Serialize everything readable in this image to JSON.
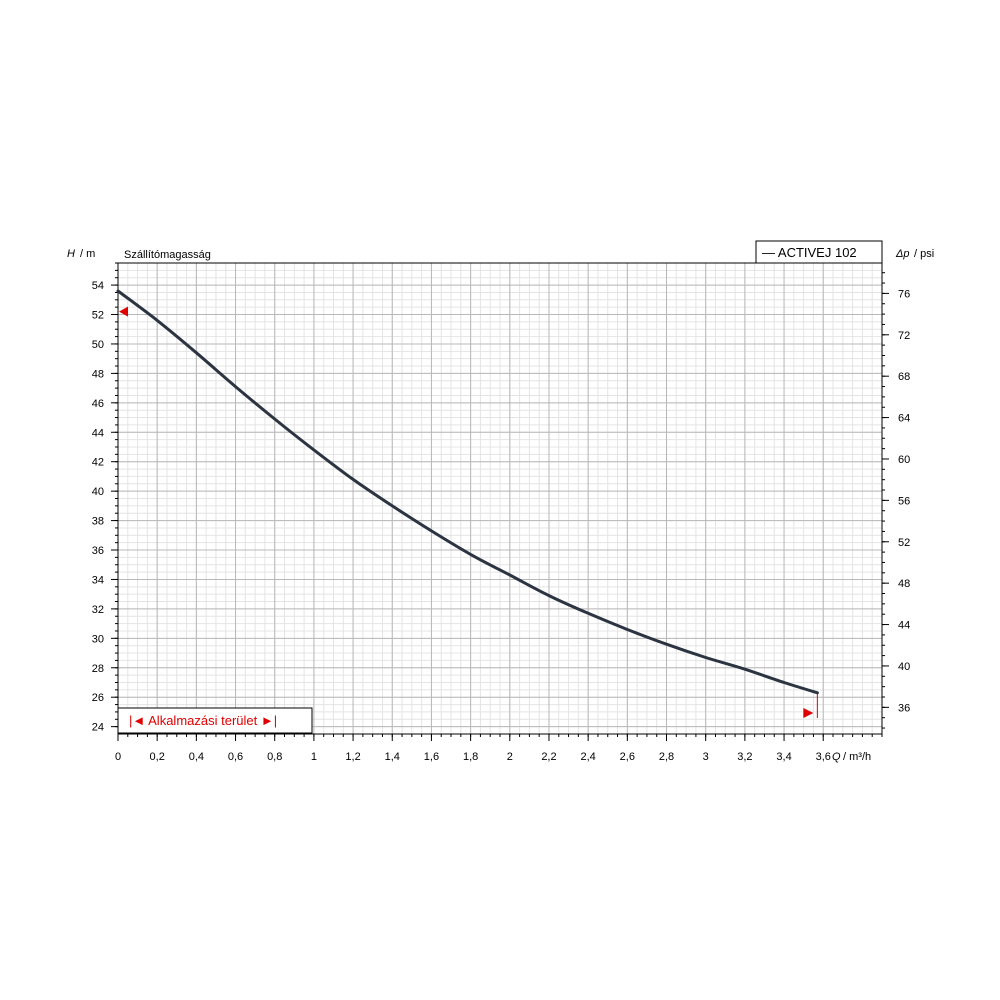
{
  "chart_data": {
    "type": "line",
    "title": "Szállítómagasság",
    "x_axis": {
      "label_symbol": "Q",
      "label_unit": "/ m³/h",
      "range": [
        0,
        3.9
      ],
      "ticks": [
        0,
        0.2,
        0.4,
        0.6,
        0.8,
        1,
        1.2,
        1.4,
        1.6,
        1.8,
        2,
        2.2,
        2.4,
        2.6,
        2.8,
        3,
        3.2,
        3.4,
        3.6
      ],
      "tick_labels": [
        "0",
        "0,2",
        "0,4",
        "0,6",
        "0,8",
        "1",
        "1,2",
        "1,4",
        "1,6",
        "1,8",
        "2",
        "2,2",
        "2,4",
        "2,6",
        "2,8",
        "3",
        "3,2",
        "3,4",
        "3,6"
      ]
    },
    "y_axis_left": {
      "label_symbol": "H",
      "label_unit": "/ m",
      "range": [
        23.5,
        55.5
      ],
      "ticks": [
        24,
        26,
        28,
        30,
        32,
        34,
        36,
        38,
        40,
        42,
        44,
        46,
        48,
        50,
        52,
        54
      ],
      "tick_labels": [
        "24",
        "26",
        "28",
        "30",
        "32",
        "34",
        "36",
        "38",
        "40",
        "42",
        "44",
        "46",
        "48",
        "50",
        "52",
        "54"
      ]
    },
    "y_axis_right": {
      "label_symbol": "Δp",
      "label_unit": "/ psi",
      "ticks": [
        36,
        40,
        44,
        48,
        52,
        56,
        60,
        64,
        68,
        72,
        76
      ],
      "tick_labels": [
        "36",
        "40",
        "44",
        "48",
        "52",
        "56",
        "60",
        "64",
        "68",
        "72",
        "76"
      ]
    },
    "grid": true,
    "legend": {
      "position": "top-right",
      "entries": [
        "— ACTIVEJ 102"
      ]
    },
    "series": [
      {
        "name": "ACTIVEJ 102",
        "color": "#2b3440",
        "x": [
          0,
          0.2,
          0.4,
          0.6,
          0.8,
          1.0,
          1.2,
          1.4,
          1.6,
          1.8,
          2.0,
          2.2,
          2.4,
          2.6,
          2.8,
          3.0,
          3.2,
          3.4,
          3.57
        ],
        "y": [
          53.6,
          51.6,
          49.4,
          47.1,
          44.9,
          42.8,
          40.8,
          39.0,
          37.3,
          35.7,
          34.3,
          32.9,
          31.7,
          30.6,
          29.6,
          28.7,
          27.9,
          27.0,
          26.3
        ]
      }
    ],
    "application_range": {
      "label": "|◄ Alkalmazási terület ►|",
      "x_min": 0,
      "x_max": 3.57,
      "start_marker_y": 52.2,
      "color": "#e00000"
    }
  }
}
